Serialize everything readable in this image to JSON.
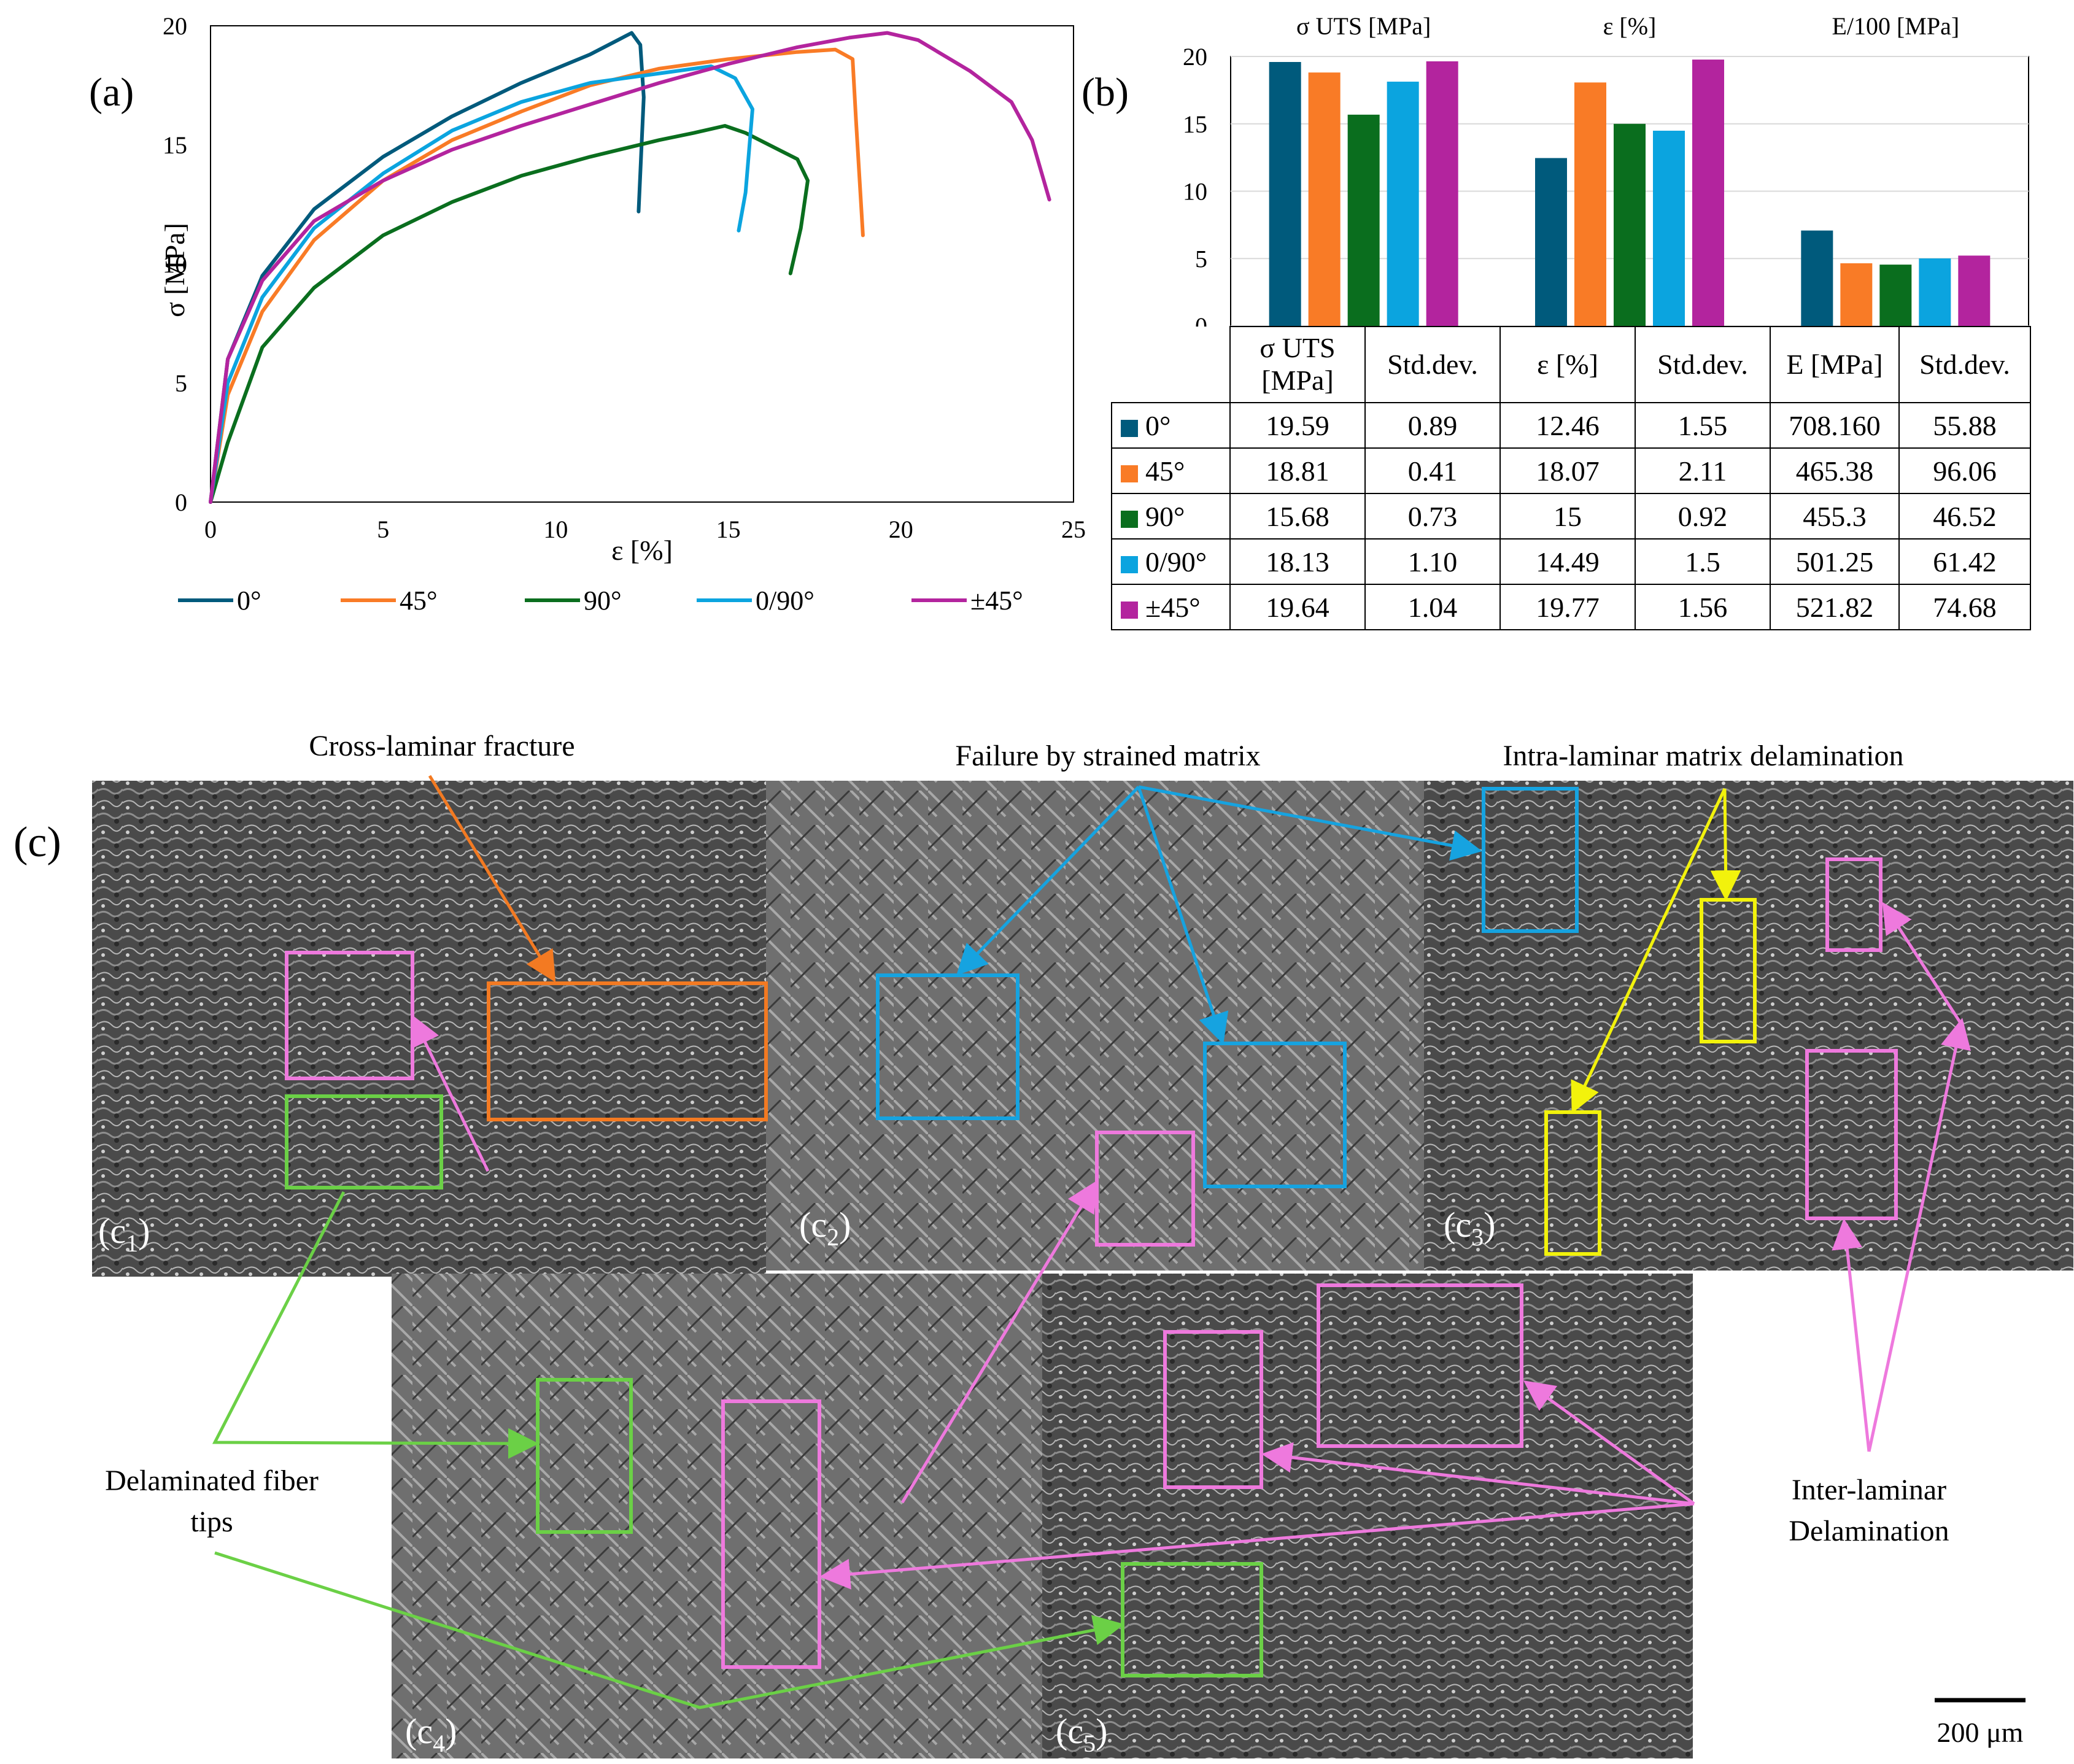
{
  "panel_labels": {
    "a": "(a)",
    "b": "(b)",
    "c": "(c)"
  },
  "colors": {
    "0deg": "#005A7C",
    "45deg": "#F97B26",
    "90deg": "#0A6E1E",
    "0_90deg": "#0BA4DF",
    "pm45deg": "#B3249E",
    "sem_green_box": "#6BD046",
    "sem_magenta_box": "#EE79DD",
    "sem_orange_box": "#F37A22",
    "sem_blue_box": "#16A3E0",
    "sem_yellow_box": "#F2F20C"
  },
  "chart_data": [
    {
      "type": "line",
      "panel": "(a)",
      "xlabel": "ε [%]",
      "ylabel": "σ [MPa]",
      "xlim": [
        0,
        25
      ],
      "ylim": [
        0,
        20
      ],
      "x_ticks": [
        "0",
        "5",
        "10",
        "15",
        "20",
        "25"
      ],
      "y_ticks": [
        "0",
        "5",
        "10",
        "15",
        "20"
      ],
      "legend_position": "bottom",
      "series": [
        {
          "name": "0°",
          "color": "#005A7C",
          "points": [
            [
              0,
              0
            ],
            [
              0.5,
              6
            ],
            [
              1.5,
              9.5
            ],
            [
              3,
              12.3
            ],
            [
              5,
              14.5
            ],
            [
              7,
              16.2
            ],
            [
              9,
              17.6
            ],
            [
              11,
              18.8
            ],
            [
              11.8,
              19.4
            ],
            [
              12.2,
              19.7
            ],
            [
              12.45,
              19.2
            ],
            [
              12.55,
              17
            ],
            [
              12.4,
              12.2
            ]
          ]
        },
        {
          "name": "45°",
          "color": "#F97B26",
          "points": [
            [
              0,
              0
            ],
            [
              0.5,
              4.5
            ],
            [
              1.5,
              8
            ],
            [
              3,
              11
            ],
            [
              5,
              13.5
            ],
            [
              7,
              15.2
            ],
            [
              9,
              16.4
            ],
            [
              11,
              17.5
            ],
            [
              13,
              18.2
            ],
            [
              15,
              18.6
            ],
            [
              17,
              18.9
            ],
            [
              18.1,
              19
            ],
            [
              18.6,
              18.6
            ],
            [
              18.7,
              16
            ],
            [
              18.9,
              11.2
            ]
          ]
        },
        {
          "name": "90°",
          "color": "#0A6E1E",
          "points": [
            [
              0,
              0
            ],
            [
              0.5,
              2.5
            ],
            [
              1.5,
              6.5
            ],
            [
              3,
              9
            ],
            [
              5,
              11.2
            ],
            [
              7,
              12.6
            ],
            [
              9,
              13.7
            ],
            [
              11,
              14.5
            ],
            [
              13,
              15.2
            ],
            [
              14,
              15.5
            ],
            [
              14.9,
              15.8
            ],
            [
              15.5,
              15.5
            ],
            [
              17,
              14.4
            ],
            [
              17.3,
              13.5
            ],
            [
              17.1,
              11.5
            ],
            [
              16.8,
              9.6
            ]
          ]
        },
        {
          "name": "0/90°",
          "color": "#0BA4DF",
          "points": [
            [
              0,
              0
            ],
            [
              0.5,
              5
            ],
            [
              1.5,
              8.6
            ],
            [
              3,
              11.5
            ],
            [
              5,
              13.8
            ],
            [
              7,
              15.6
            ],
            [
              9,
              16.8
            ],
            [
              11,
              17.6
            ],
            [
              13,
              18
            ],
            [
              14.5,
              18.3
            ],
            [
              15.2,
              17.8
            ],
            [
              15.7,
              16.5
            ],
            [
              15.5,
              13
            ],
            [
              15.3,
              11.4
            ]
          ]
        },
        {
          "name": "±45°",
          "color": "#B3249E",
          "points": [
            [
              0,
              0
            ],
            [
              0.5,
              6
            ],
            [
              1.5,
              9.3
            ],
            [
              3,
              11.8
            ],
            [
              5,
              13.5
            ],
            [
              7,
              14.8
            ],
            [
              9,
              15.8
            ],
            [
              11,
              16.7
            ],
            [
              13,
              17.6
            ],
            [
              15,
              18.4
            ],
            [
              17,
              19.1
            ],
            [
              18.5,
              19.5
            ],
            [
              19.6,
              19.7
            ],
            [
              20.5,
              19.4
            ],
            [
              22,
              18.1
            ],
            [
              23.2,
              16.8
            ],
            [
              23.8,
              15.2
            ],
            [
              24.3,
              12.7
            ]
          ]
        }
      ]
    },
    {
      "type": "bar",
      "panel": "(b)",
      "groups": [
        "σ UTS [MPa]",
        "ε [%]",
        "E/100 [MPa]"
      ],
      "ylim": [
        0,
        20
      ],
      "y_ticks": [
        "0",
        "5",
        "10",
        "15",
        "20"
      ],
      "series": [
        {
          "name": "0°",
          "color": "#005A7C",
          "values": [
            19.59,
            12.46,
            7.08
          ]
        },
        {
          "name": "45°",
          "color": "#F97B26",
          "values": [
            18.81,
            18.07,
            4.65
          ]
        },
        {
          "name": "90°",
          "color": "#0A6E1E",
          "values": [
            15.68,
            15,
            4.55
          ]
        },
        {
          "name": "0/90°",
          "color": "#0BA4DF",
          "values": [
            18.13,
            14.49,
            5.01
          ]
        },
        {
          "name": "±45°",
          "color": "#B3249E",
          "values": [
            19.64,
            19.77,
            5.22
          ]
        }
      ]
    },
    {
      "type": "table",
      "panel": "(b)",
      "columns": [
        "σ UTS [MPa]",
        "Std.dev.",
        "ε [%]",
        "Std.dev.",
        "E [MPa]",
        "Std.dev."
      ],
      "rows": [
        {
          "label": "0°",
          "values": [
            "19.59",
            "0.89",
            "12.46",
            "1.55",
            "708.160",
            "55.88"
          ]
        },
        {
          "label": "45°",
          "values": [
            "18.81",
            "0.41",
            "18.07",
            "2.11",
            "465.38",
            "96.06"
          ]
        },
        {
          "label": "90°",
          "values": [
            "15.68",
            "0.73",
            "15",
            "0.92",
            "455.3",
            "46.52"
          ]
        },
        {
          "label": "0/90°",
          "values": [
            "18.13",
            "1.10",
            "14.49",
            "1.5",
            "501.25",
            "61.42"
          ]
        },
        {
          "label": "±45°",
          "values": [
            "19.64",
            "1.04",
            "19.77",
            "1.56",
            "521.82",
            "74.68"
          ]
        }
      ]
    }
  ],
  "table": {
    "header_lines": [
      [
        "σ UTS",
        "[MPa]"
      ],
      [
        "Std.dev."
      ],
      [
        "ε [%]"
      ],
      [
        "Std.dev."
      ],
      [
        "E [MPa]"
      ],
      [
        "Std.dev."
      ]
    ]
  },
  "sem": {
    "panel_labels": [
      "(c",
      "1",
      ")",
      "(c",
      "2",
      ")",
      "(c",
      "3",
      ")",
      "(c",
      "4",
      ")",
      "(c",
      "5",
      ")"
    ],
    "c_labels": [
      {
        "pre": "(c",
        "sub": "1",
        "post": ")"
      },
      {
        "pre": "(c",
        "sub": "2",
        "post": ")"
      },
      {
        "pre": "(c",
        "sub": "3",
        "post": ")"
      },
      {
        "pre": "(c",
        "sub": "4",
        "post": ")"
      },
      {
        "pre": "(c",
        "sub": "5",
        "post": ")"
      }
    ],
    "annotations": {
      "cross_laminar": "Cross-laminar fracture",
      "strained_matrix": "Failure by strained matrix",
      "intra_laminar": "Intra-laminar matrix delamination",
      "fiber_tips_line1": "Delaminated fiber",
      "fiber_tips_line2": "tips",
      "inter_laminar_line1": "Inter-laminar",
      "inter_laminar_line2": "Delamination"
    },
    "scale_bar": "200 μm"
  }
}
